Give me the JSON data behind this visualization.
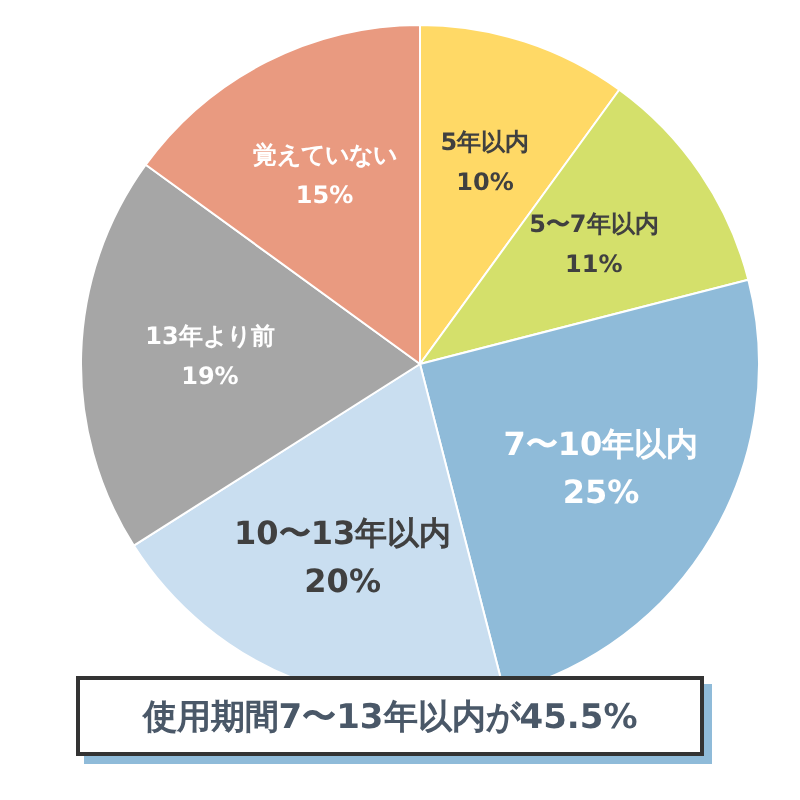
{
  "chart_data": {
    "type": "pie",
    "categories": [
      "5年以内",
      "5〜7年以内",
      "7〜10年以内",
      "10〜13年以内",
      "13年より前",
      "覚えていない"
    ],
    "values": [
      10,
      11,
      25,
      20,
      19,
      15
    ],
    "colors": [
      "#ffd966",
      "#d4e06b",
      "#8fbbd9",
      "#c9def0",
      "#a6a6a6",
      "#e99a80"
    ],
    "value_labels": [
      "10%",
      "11%",
      "25%",
      "20%",
      "19%",
      "15%"
    ],
    "legend": false,
    "annotations": [
      "使用期間7〜13年以内が45.5%"
    ]
  }
}
